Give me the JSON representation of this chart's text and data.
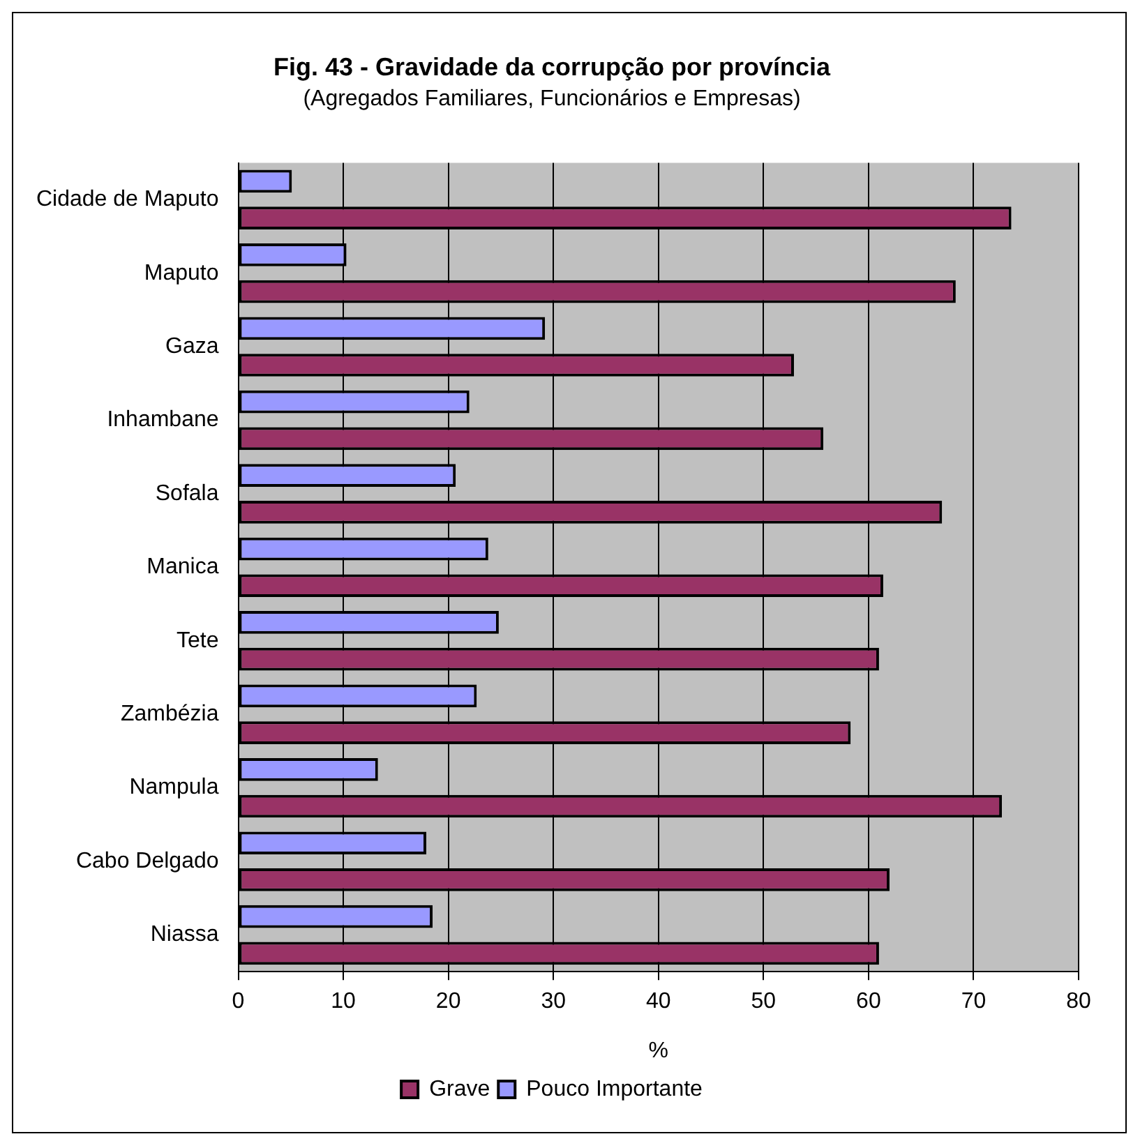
{
  "chart_data": {
    "type": "bar",
    "orientation": "horizontal",
    "title": "Fig. 43 - Gravidade da corrupção por província",
    "subtitle": "(Agregados Familiares, Funcionários e Empresas)",
    "xlabel": "%",
    "categories": [
      "Cidade de Maputo",
      "Maputo",
      "Gaza",
      "Inhambane",
      "Sofala",
      "Manica",
      "Tete",
      "Zambézia",
      "Nampula",
      "Cabo Delgado",
      "Niassa"
    ],
    "series": [
      {
        "name": "Pouco Importante",
        "color": "#9999ff",
        "values": [
          5.1,
          10.3,
          29.2,
          22.0,
          20.7,
          23.8,
          24.8,
          22.7,
          13.3,
          17.9,
          18.5
        ]
      },
      {
        "name": "Grave",
        "color": "#993366",
        "values": [
          73.6,
          68.3,
          52.9,
          55.7,
          67.0,
          61.4,
          61.0,
          58.3,
          72.7,
          62.0,
          61.0
        ]
      }
    ],
    "xlim": [
      0,
      80
    ],
    "xticks": [
      0,
      10,
      20,
      30,
      40,
      50,
      60,
      70,
      80
    ],
    "grid": "x",
    "legend": "bottom"
  }
}
